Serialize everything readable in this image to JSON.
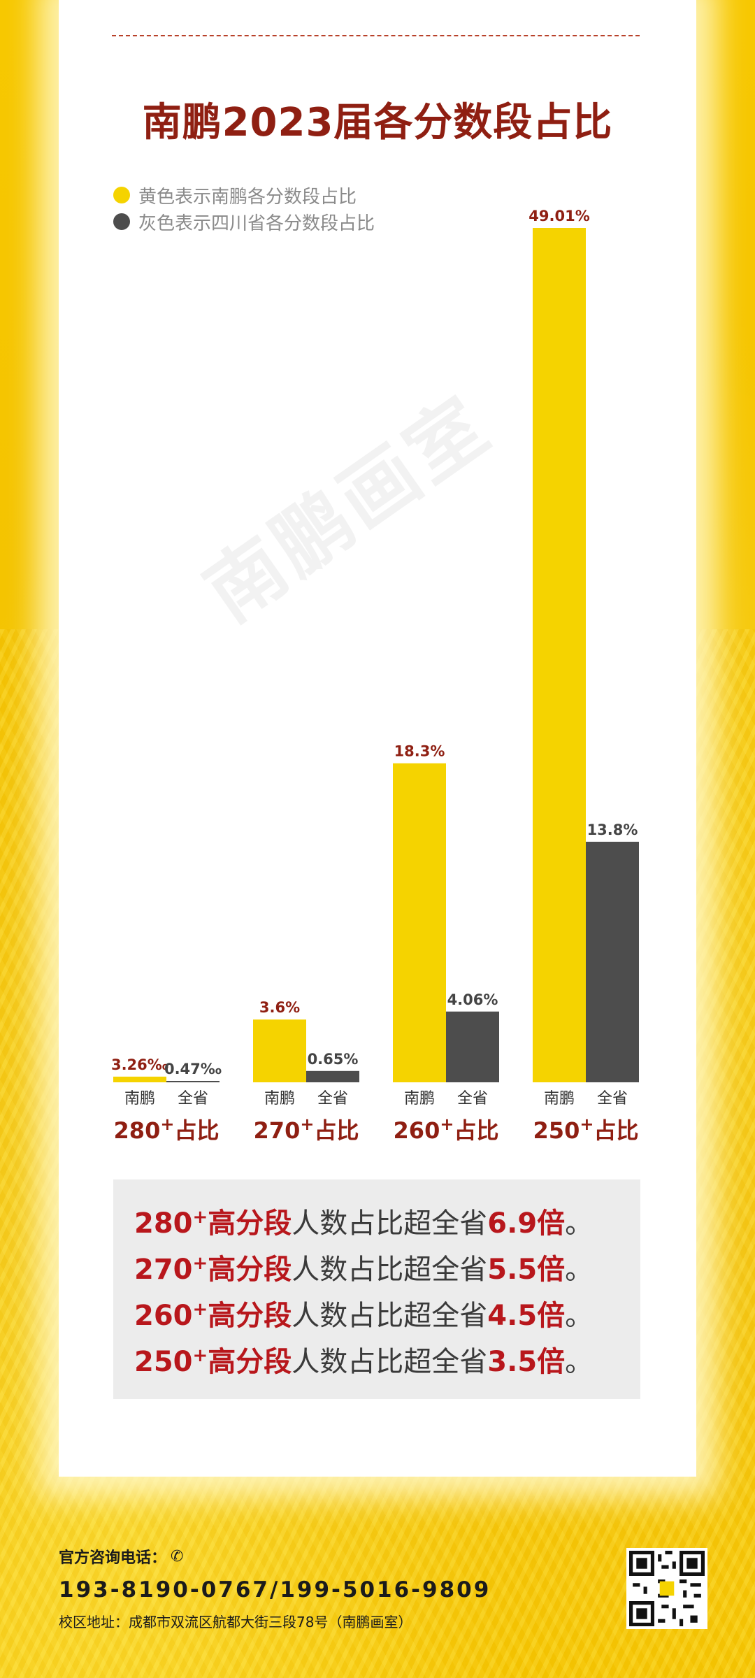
{
  "title": "南鹏2023届各分数段占比",
  "legend": [
    {
      "label": "黄色表示南鹏各分数段占比",
      "color": "#f5d300"
    },
    {
      "label": "灰色表示四川省各分数段占比",
      "color": "#4d4d4d"
    }
  ],
  "watermark": "南鹏画室",
  "chart_data": {
    "type": "bar",
    "categories": [
      "280+占比",
      "270+占比",
      "260+占比",
      "250+占比"
    ],
    "category_main": [
      "280",
      "270",
      "260",
      "250"
    ],
    "category_sup": "+",
    "category_suffix": "占比",
    "bar_labels": [
      "南鹏",
      "全省"
    ],
    "colors": {
      "nanpeng": "#f5d300",
      "province": "#4d4d4d",
      "value_label": "#8f1f12",
      "province_label": "#444444"
    },
    "series": [
      {
        "name": "南鹏",
        "values": [
          0.326,
          3.6,
          18.3,
          49.01
        ],
        "labels": [
          "3.26‰",
          "3.6%",
          "18.3%",
          "49.01%"
        ]
      },
      {
        "name": "全省",
        "values": [
          0.047,
          0.65,
          4.06,
          13.8
        ],
        "labels": [
          "0.47‰",
          "0.65%",
          "4.06%",
          "13.8%"
        ]
      }
    ],
    "unit": "%"
  },
  "notes": [
    {
      "score": "280",
      "sup": "+",
      "hi": "高分段",
      "mid": "人数占比超全省",
      "mult": "6.9倍",
      "end": "。"
    },
    {
      "score": "270",
      "sup": "+",
      "hi": "高分段",
      "mid": "人数占比超全省",
      "mult": "5.5倍",
      "end": "。"
    },
    {
      "score": "260",
      "sup": "+",
      "hi": "高分段",
      "mid": "人数占比超全省",
      "mult": "4.5倍",
      "end": "。"
    },
    {
      "score": "250",
      "sup": "+",
      "hi": "高分段",
      "mid": "人数占比超全省",
      "mult": "3.5倍",
      "end": "。"
    }
  ],
  "footer": {
    "phone_label": "官方咨询电话：",
    "phone_icon": "phone-icon",
    "phones": "193-8190-0767/199-5016-9809",
    "address": "校区地址：成都市双流区航都大街三段78号（南鹏画室）",
    "qr": "qr-code"
  }
}
